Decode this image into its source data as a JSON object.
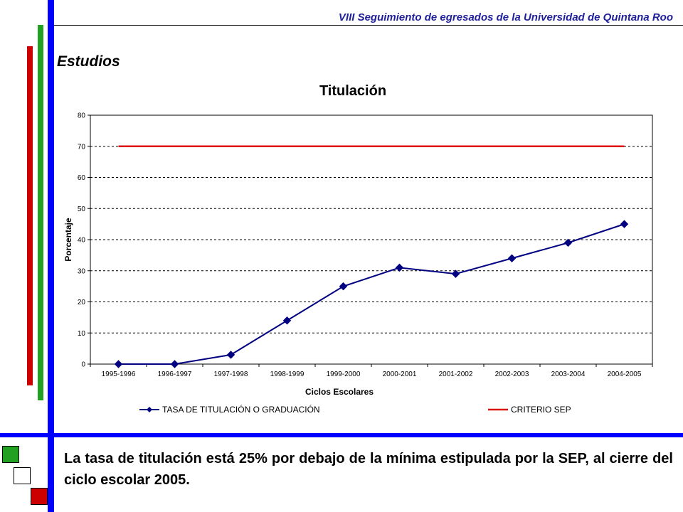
{
  "header": {
    "title": "VIII Seguimiento de egresados de la Universidad de Quintana Roo"
  },
  "section": {
    "title": "Estudios"
  },
  "colors": {
    "blue_bar": "#0000ff",
    "green_bar": "#22a022",
    "red_bar": "#cc0000",
    "series_line": "#000080",
    "criterio_line": "#dd1111"
  },
  "chart_data": {
    "type": "line",
    "title": "Titulación",
    "xlabel": "Ciclos Escolares",
    "ylabel": "Porcentaje",
    "ylim": [
      0,
      80
    ],
    "yticks": [
      0,
      10,
      20,
      30,
      40,
      50,
      60,
      70,
      80
    ],
    "grid": true,
    "legend_position": "bottom",
    "categories": [
      "1995-1996",
      "1996-1997",
      "1997-1998",
      "1998-1999",
      "1999-2000",
      "2000-2001",
      "2001-2002",
      "2002-2003",
      "2003-2004",
      "2004-2005"
    ],
    "series": [
      {
        "name": "TASA DE TITULACIÓN O GRADUACIÓN",
        "values": [
          0,
          0,
          3,
          14,
          25,
          31,
          29,
          34,
          39,
          45
        ],
        "color": "#000080",
        "marker": "diamond"
      },
      {
        "name": "CRITERIO SEP",
        "values": [
          70,
          70,
          70,
          70,
          70,
          70,
          70,
          70,
          70,
          70
        ],
        "color": "#dd1111",
        "marker": "none"
      }
    ]
  },
  "summary": {
    "text": "La tasa de titulación está 25% por debajo de la mínima estipulada por la SEP, al cierre del ciclo escolar 2005."
  }
}
